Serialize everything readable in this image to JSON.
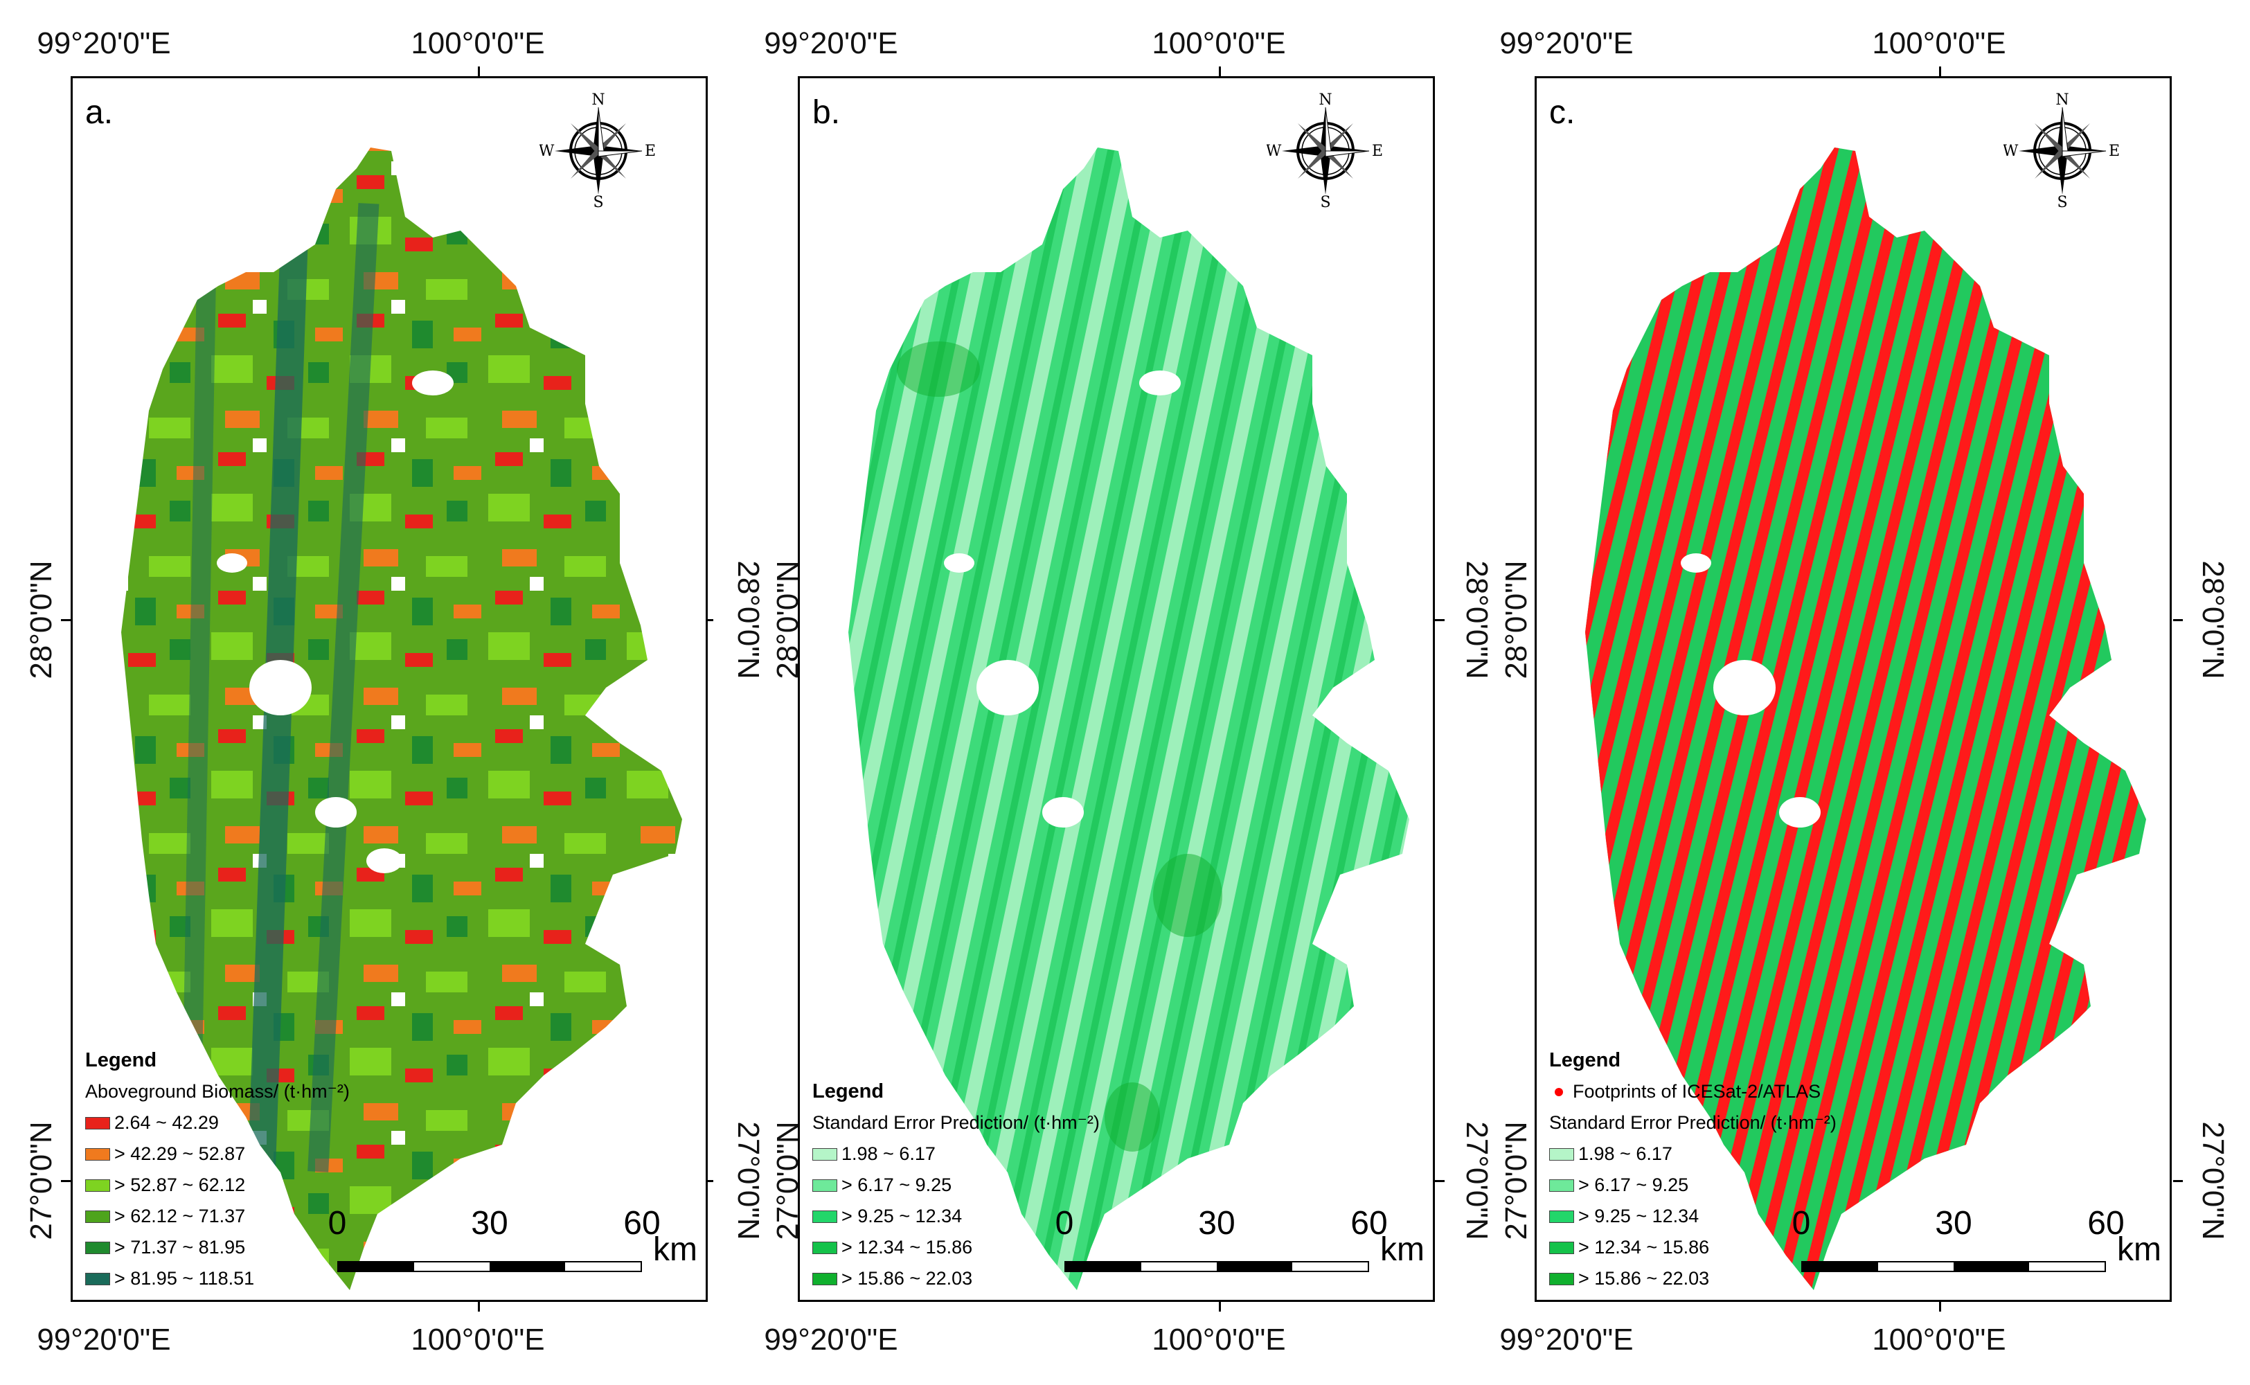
{
  "coords": {
    "lon_left": "99°20'0\"E",
    "lon_mid": "100°0'0\"E",
    "lat_upper": "28°0'0\"N",
    "lat_lower": "27°0'0\"N"
  },
  "scale": {
    "labels": [
      "0",
      "30",
      "60"
    ],
    "unit": "km"
  },
  "compass": {
    "n": "N",
    "s": "S",
    "e": "E",
    "w": "W"
  },
  "panels": [
    {
      "label": "a.",
      "legend": {
        "title": "Legend",
        "subtitle": "Aboveground Biomass/  (t·hm⁻²)",
        "items": [
          {
            "label": "2.64 ~ 42.29",
            "color": "#e8221b"
          },
          {
            "label": "> 42.29 ~ 52.87",
            "color": "#f07a1e"
          },
          {
            "label": "> 52.87 ~ 62.12",
            "color": "#7ed321"
          },
          {
            "label": "> 62.12 ~ 71.37",
            "color": "#4ea41c"
          },
          {
            "label": "> 71.37 ~ 81.95",
            "color": "#1f8a2e"
          },
          {
            "label": "> 81.95 ~ 118.51",
            "color": "#1a6b5a"
          }
        ]
      }
    },
    {
      "label": "b.",
      "legend": {
        "title": "Legend",
        "subtitle": "Standard Error Prediction/  (t·hm⁻²)",
        "items": [
          {
            "label": "1.98 ~ 6.17",
            "color": "#b5f5c8"
          },
          {
            "label": "> 6.17 ~ 9.25",
            "color": "#6ee99a"
          },
          {
            "label": "> 9.25 ~ 12.34",
            "color": "#22d66a"
          },
          {
            "label": "> 12.34 ~ 15.86",
            "color": "#14c24a"
          },
          {
            "label": "> 15.86 ~ 22.03",
            "color": "#10b02e"
          }
        ]
      }
    },
    {
      "label": "c.",
      "legend": {
        "title": "Legend",
        "footprint": "Footprints of ICESat-2/ATLAS",
        "subtitle": "Standard Error Prediction/  (t·hm⁻²)",
        "items": [
          {
            "label": "1.98 ~ 6.17",
            "color": "#b5f5c8"
          },
          {
            "label": "> 6.17 ~ 9.25",
            "color": "#6ee99a"
          },
          {
            "label": "> 9.25 ~ 12.34",
            "color": "#22d66a"
          },
          {
            "label": "> 12.34 ~ 15.86",
            "color": "#14c24a"
          },
          {
            "label": "> 15.86 ~ 22.03",
            "color": "#10b02e"
          }
        ]
      }
    }
  ]
}
